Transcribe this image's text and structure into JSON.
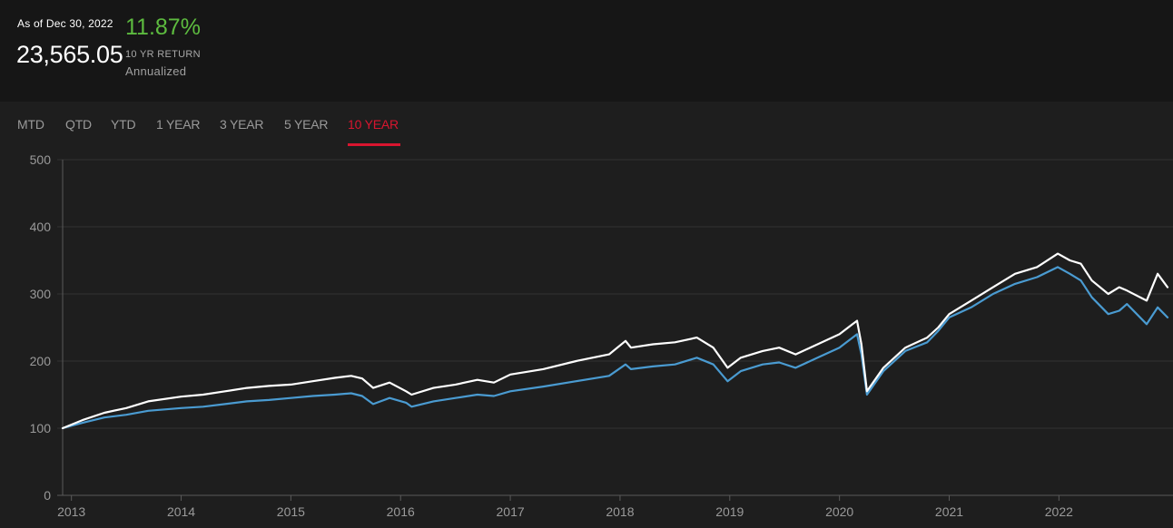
{
  "header": {
    "as_of": "As of Dec 30, 2022",
    "value": "23,565.05",
    "return_pct": "11.87%",
    "return_label": "10 YR RETURN",
    "return_sub": "Annualized",
    "return_color": "#5dbb3f"
  },
  "tabs": [
    {
      "label": "MTD",
      "active": false
    },
    {
      "label": "QTD",
      "active": false
    },
    {
      "label": "YTD",
      "active": false
    },
    {
      "label": "1 YEAR",
      "active": false
    },
    {
      "label": "3 YEAR",
      "active": false
    },
    {
      "label": "5 YEAR",
      "active": false
    },
    {
      "label": "10 YEAR",
      "active": true
    }
  ],
  "colors": {
    "accent": "#d9152f",
    "background": "#1e1e1e",
    "series_white": "#ffffff",
    "series_blue": "#4a9bd1"
  },
  "chart_data": {
    "type": "line",
    "x_ticks": [
      "2013",
      "2014",
      "2015",
      "2016",
      "2017",
      "2018",
      "2019",
      "2020",
      "2021",
      "2022"
    ],
    "y_ticks": [
      0,
      100,
      200,
      300,
      400,
      500
    ],
    "ylim": [
      0,
      500
    ],
    "xlim": [
      2012.92,
      2022.99
    ],
    "grid": true,
    "series": [
      {
        "color": "#ffffff",
        "x": [
          2012.92,
          2013.1,
          2013.3,
          2013.5,
          2013.7,
          2014.0,
          2014.2,
          2014.4,
          2014.6,
          2014.8,
          2015.0,
          2015.2,
          2015.4,
          2015.55,
          2015.65,
          2015.75,
          2015.9,
          2016.05,
          2016.1,
          2016.3,
          2016.5,
          2016.7,
          2016.85,
          2017.0,
          2017.3,
          2017.6,
          2017.9,
          2018.05,
          2018.1,
          2018.3,
          2018.5,
          2018.7,
          2018.85,
          2018.98,
          2019.1,
          2019.3,
          2019.45,
          2019.6,
          2019.8,
          2020.0,
          2020.12,
          2020.16,
          2020.2,
          2020.25,
          2020.4,
          2020.6,
          2020.8,
          2020.9,
          2021.0,
          2021.2,
          2021.4,
          2021.6,
          2021.8,
          2021.99,
          2022.1,
          2022.2,
          2022.3,
          2022.45,
          2022.55,
          2022.62,
          2022.8,
          2022.9,
          2022.99
        ],
        "values": [
          100,
          112,
          123,
          130,
          140,
          147,
          150,
          155,
          160,
          163,
          165,
          170,
          175,
          178,
          174,
          160,
          168,
          155,
          150,
          160,
          165,
          172,
          168,
          180,
          188,
          200,
          210,
          230,
          220,
          225,
          228,
          235,
          220,
          190,
          205,
          215,
          220,
          210,
          225,
          240,
          255,
          260,
          225,
          155,
          190,
          220,
          235,
          250,
          270,
          290,
          310,
          330,
          340,
          360,
          350,
          345,
          320,
          300,
          310,
          305,
          290,
          330,
          310
        ]
      },
      {
        "color": "#4a9bd1",
        "x": [
          2012.92,
          2013.1,
          2013.3,
          2013.5,
          2013.7,
          2014.0,
          2014.2,
          2014.4,
          2014.6,
          2014.8,
          2015.0,
          2015.2,
          2015.4,
          2015.55,
          2015.65,
          2015.75,
          2015.9,
          2016.05,
          2016.1,
          2016.3,
          2016.5,
          2016.7,
          2016.85,
          2017.0,
          2017.3,
          2017.6,
          2017.9,
          2018.05,
          2018.1,
          2018.3,
          2018.5,
          2018.7,
          2018.85,
          2018.98,
          2019.1,
          2019.3,
          2019.45,
          2019.6,
          2019.8,
          2020.0,
          2020.12,
          2020.16,
          2020.2,
          2020.25,
          2020.4,
          2020.6,
          2020.8,
          2020.9,
          2021.0,
          2021.2,
          2021.4,
          2021.6,
          2021.8,
          2021.99,
          2022.1,
          2022.2,
          2022.3,
          2022.45,
          2022.55,
          2022.62,
          2022.8,
          2022.9,
          2022.99
        ],
        "values": [
          100,
          108,
          116,
          120,
          126,
          130,
          132,
          136,
          140,
          142,
          145,
          148,
          150,
          152,
          148,
          136,
          145,
          138,
          132,
          140,
          145,
          150,
          148,
          155,
          162,
          170,
          178,
          195,
          188,
          192,
          195,
          205,
          195,
          170,
          185,
          195,
          198,
          190,
          205,
          220,
          235,
          240,
          210,
          150,
          185,
          215,
          228,
          245,
          265,
          280,
          300,
          315,
          325,
          340,
          330,
          320,
          295,
          270,
          275,
          285,
          255,
          280,
          265
        ]
      }
    ]
  }
}
